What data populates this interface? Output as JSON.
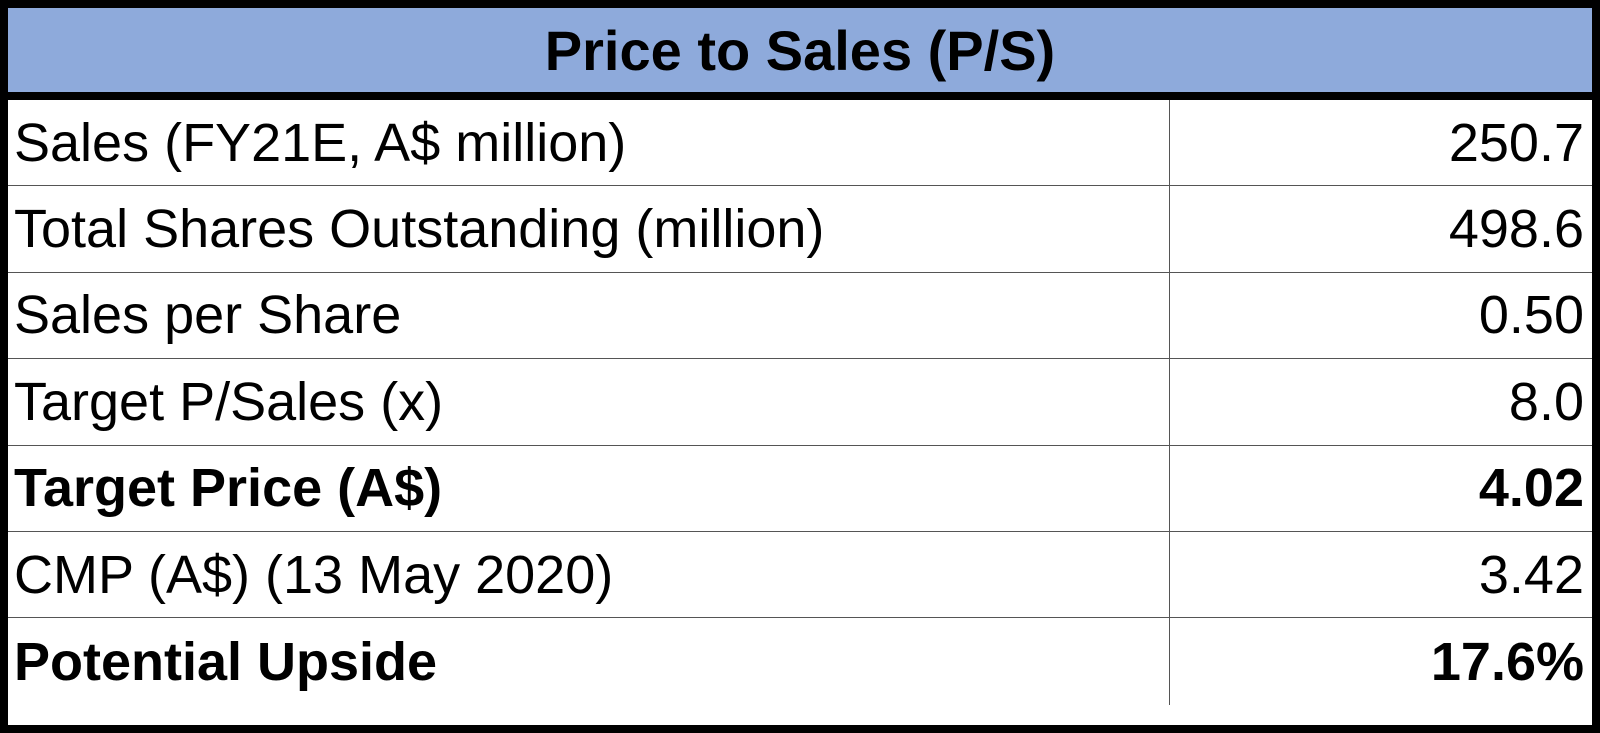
{
  "table": {
    "title": "Price to Sales (P/S)",
    "rows": [
      {
        "label": "Sales (FY21E, A$ million)",
        "value": "250.7",
        "bold": false
      },
      {
        "label": "Total Shares Outstanding (million)",
        "value": "498.6",
        "bold": false
      },
      {
        "label": "Sales per Share",
        "value": "0.50",
        "bold": false
      },
      {
        "label": "Target P/Sales (x)",
        "value": "8.0",
        "bold": false
      },
      {
        "label": "Target Price (A$)",
        "value": "4.02",
        "bold": true
      },
      {
        "label": "CMP (A$) (13 May 2020)",
        "value": "3.42",
        "bold": false
      },
      {
        "label": "Potential Upside",
        "value": "17.6%",
        "bold": true
      }
    ]
  }
}
